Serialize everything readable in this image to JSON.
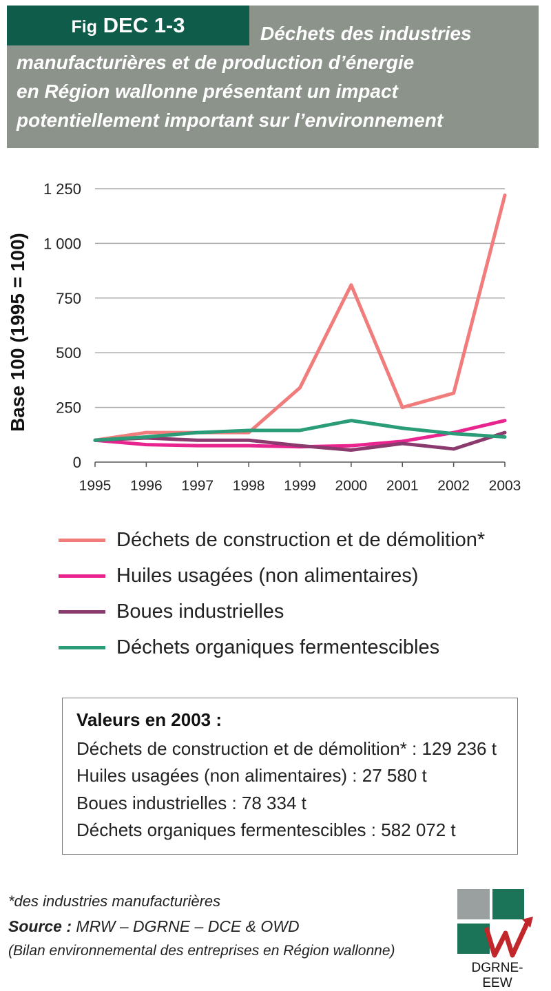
{
  "figure": {
    "tag_prefix": "Fig",
    "tag_id": "DEC 1-3",
    "title_lines": [
      "Déchets des industries",
      "manufacturières et de production d’énergie",
      "en Région wallonne présentant un impact",
      "potentiellement important sur l’environnement"
    ]
  },
  "colors": {
    "header_bg": "#8c938b",
    "tag_bg": "#0f5c4b",
    "construction": "#f07c7c",
    "huiles": "#e8258f",
    "boues": "#8b3a6e",
    "organiques": "#2a9d78"
  },
  "chart_data": {
    "type": "line",
    "ylabel": "Base 100 (1995 = 100)",
    "xlabel": "",
    "ylim": [
      0,
      1250
    ],
    "yticks": [
      0,
      250,
      500,
      750,
      1000,
      1250
    ],
    "ytick_labels": [
      "0",
      "250",
      "500",
      "750",
      "1 000",
      "1 250"
    ],
    "grid": true,
    "categories": [
      "1995",
      "1996",
      "1997",
      "1998",
      "1999",
      "2000",
      "2001",
      "2002",
      "2003"
    ],
    "series": [
      {
        "name": "Déchets de construction et de démolition*",
        "color": "#f07c7c",
        "values": [
          100,
          135,
          135,
          135,
          340,
          810,
          250,
          315,
          1220
        ]
      },
      {
        "name": "Huiles usagées (non alimentaires)",
        "color": "#e8258f",
        "values": [
          100,
          80,
          75,
          75,
          70,
          75,
          95,
          135,
          190
        ]
      },
      {
        "name": "Boues industrielles",
        "color": "#8b3a6e",
        "values": [
          100,
          110,
          100,
          100,
          75,
          55,
          85,
          60,
          135
        ]
      },
      {
        "name": "Déchets organiques fermentescibles",
        "color": "#2a9d78",
        "values": [
          100,
          115,
          135,
          145,
          145,
          190,
          155,
          130,
          115
        ]
      }
    ]
  },
  "values_box": {
    "title": "Valeurs en 2003 :",
    "lines": [
      "Déchets de construction et de démolition* : 129 236 t",
      "Huiles usagées (non alimentaires) : 27 580 t",
      "Boues industrielles : 78 334 t",
      "Déchets organiques fermentescibles : 582 072 t"
    ]
  },
  "footer": {
    "footnote": "*des industries manufacturières",
    "source_label": "Source :",
    "source_text": "MRW – DGRNE – DCE & OWD",
    "source_detail": "(Bilan environnemental des entreprises en Région wallonne)",
    "logo_text": "DGRNE-EEW"
  }
}
